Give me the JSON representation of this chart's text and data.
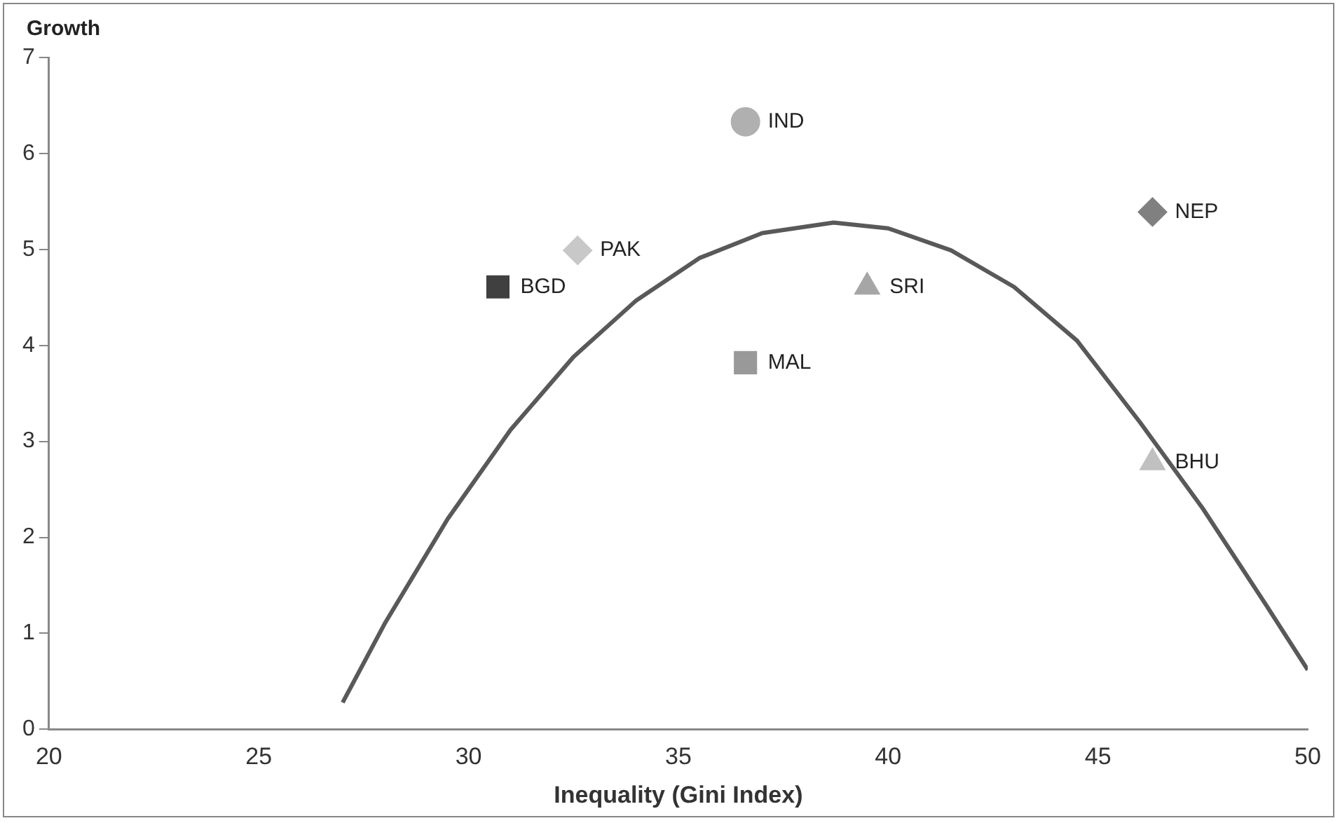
{
  "chart_data": {
    "type": "scatter",
    "xlabel": "Inequality (Gini Index)",
    "ylabel": "Growth",
    "xlim": [
      20,
      50
    ],
    "xticks": [
      20,
      25,
      30,
      35,
      40,
      45,
      50
    ],
    "ylim": [
      0,
      7
    ],
    "yticks": [
      0,
      1,
      2,
      3,
      4,
      5,
      6,
      7
    ],
    "grid": false,
    "legend": false,
    "series": [
      {
        "name": "BGD",
        "color": "#404040",
        "marker": "square",
        "x": [
          30.7
        ],
        "values": [
          4.61
        ]
      },
      {
        "name": "PAK",
        "color": "#c8c8c8",
        "marker": "diamond",
        "x": [
          32.6
        ],
        "values": [
          4.99
        ]
      },
      {
        "name": "IND",
        "color": "#b0b0b0",
        "marker": "circle",
        "x": [
          36.6
        ],
        "values": [
          6.33
        ]
      },
      {
        "name": "MAL",
        "color": "#999999",
        "marker": "square",
        "x": [
          36.6
        ],
        "values": [
          3.82
        ]
      },
      {
        "name": "SRI",
        "color": "#a6a6a6",
        "marker": "triangle",
        "x": [
          39.5
        ],
        "values": [
          4.61
        ]
      },
      {
        "name": "NEP",
        "color": "#808080",
        "marker": "diamond",
        "x": [
          46.3
        ],
        "values": [
          5.39
        ]
      },
      {
        "name": "BHU",
        "color": "#c0c0c0",
        "marker": "triangle",
        "x": [
          46.3
        ],
        "values": [
          2.78
        ]
      },
      {
        "type": "line",
        "color": "#595959",
        "marker": "none",
        "line_style": "solid",
        "x": [
          27,
          28,
          29.5,
          31,
          32.5,
          34,
          35.5,
          37,
          38.7,
          40,
          41.5,
          43,
          44.5,
          46,
          47.5,
          49,
          50
        ],
        "values": [
          0.28,
          1.1,
          2.19,
          3.12,
          3.88,
          4.47,
          4.91,
          5.17,
          5.28,
          5.22,
          4.99,
          4.61,
          4.05,
          3.2,
          2.3,
          1.3,
          0.62
        ]
      }
    ]
  }
}
